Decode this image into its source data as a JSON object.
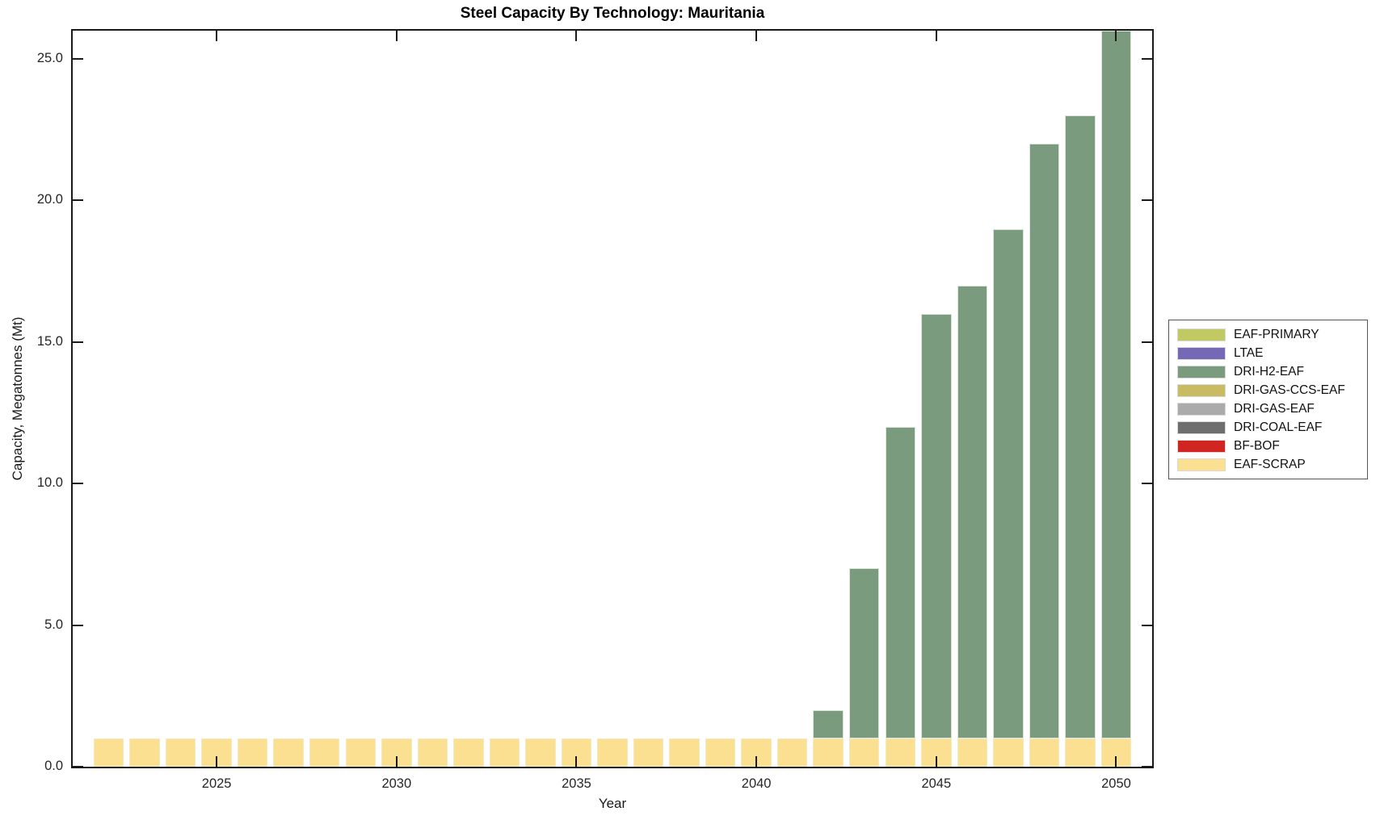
{
  "title": "Steel Capacity By Technology: Mauritania",
  "chart_data": {
    "type": "bar",
    "stacked": true,
    "title": "Steel Capacity By Technology: Mauritania",
    "xlabel": "Year",
    "ylabel": "Capacity, Megatonnes (Mt)",
    "x": [
      2022,
      2023,
      2024,
      2025,
      2026,
      2027,
      2028,
      2029,
      2030,
      2031,
      2032,
      2033,
      2034,
      2035,
      2036,
      2037,
      2038,
      2039,
      2040,
      2041,
      2042,
      2043,
      2044,
      2045,
      2046,
      2047,
      2048,
      2049,
      2050
    ],
    "series": [
      {
        "name": "EAF-PRIMARY",
        "color": "#c1ca62",
        "values": [
          0,
          0,
          0,
          0,
          0,
          0,
          0,
          0,
          0,
          0,
          0,
          0,
          0,
          0,
          0,
          0,
          0,
          0,
          0,
          0,
          0,
          0,
          0,
          0,
          0,
          0,
          0,
          0,
          0
        ]
      },
      {
        "name": "LTAE",
        "color": "#7568b7",
        "values": [
          0,
          0,
          0,
          0,
          0,
          0,
          0,
          0,
          0,
          0,
          0,
          0,
          0,
          0,
          0,
          0,
          0,
          0,
          0,
          0,
          0,
          0,
          0,
          0,
          0,
          0,
          0,
          0,
          0
        ]
      },
      {
        "name": "DRI-H2-EAF",
        "color": "#7a9b7e",
        "values": [
          0,
          0,
          0,
          0,
          0,
          0,
          0,
          0,
          0,
          0,
          0,
          0,
          0,
          0,
          0,
          0,
          0,
          0,
          0,
          0,
          1,
          6,
          11,
          15,
          16,
          18,
          21,
          22,
          25
        ]
      },
      {
        "name": "DRI-GAS-CCS-EAF",
        "color": "#c9bb61",
        "values": [
          0,
          0,
          0,
          0,
          0,
          0,
          0,
          0,
          0,
          0,
          0,
          0,
          0,
          0,
          0,
          0,
          0,
          0,
          0,
          0,
          0,
          0,
          0,
          0,
          0,
          0,
          0,
          0,
          0
        ]
      },
      {
        "name": "DRI-GAS-EAF",
        "color": "#ababab",
        "values": [
          0,
          0,
          0,
          0,
          0,
          0,
          0,
          0,
          0,
          0,
          0,
          0,
          0,
          0,
          0,
          0,
          0,
          0,
          0,
          0,
          0,
          0,
          0,
          0,
          0,
          0,
          0,
          0,
          0
        ]
      },
      {
        "name": "DRI-COAL-EAF",
        "color": "#6e6e6e",
        "values": [
          0,
          0,
          0,
          0,
          0,
          0,
          0,
          0,
          0,
          0,
          0,
          0,
          0,
          0,
          0,
          0,
          0,
          0,
          0,
          0,
          0,
          0,
          0,
          0,
          0,
          0,
          0,
          0,
          0
        ]
      },
      {
        "name": "BF-BOF",
        "color": "#d02521",
        "values": [
          0,
          0,
          0,
          0,
          0,
          0,
          0,
          0,
          0,
          0,
          0,
          0,
          0,
          0,
          0,
          0,
          0,
          0,
          0,
          0,
          0,
          0,
          0,
          0,
          0,
          0,
          0,
          0,
          0
        ]
      },
      {
        "name": "EAF-SCRAP",
        "color": "#fce091",
        "values": [
          1,
          1,
          1,
          1,
          1,
          1,
          1,
          1,
          1,
          1,
          1,
          1,
          1,
          1,
          1,
          1,
          1,
          1,
          1,
          1,
          1,
          1,
          1,
          1,
          1,
          1,
          1,
          1,
          1
        ]
      }
    ],
    "stack_totals": [
      1,
      1,
      1,
      1,
      1,
      1,
      1,
      1,
      1,
      1,
      1,
      1,
      1,
      1,
      1,
      1,
      1,
      1,
      1,
      1,
      2,
      7,
      12,
      16,
      17,
      19,
      22,
      23,
      26
    ],
    "xlim": [
      2021,
      2051
    ],
    "ylim": [
      0,
      26
    ],
    "xticks": {
      "values": [
        2025,
        2030,
        2035,
        2040,
        2045,
        2050
      ],
      "labels": [
        "2025",
        "2030",
        "2035",
        "2040",
        "2045",
        "2050"
      ]
    },
    "yticks": {
      "values": [
        0,
        5,
        10,
        15,
        20,
        25
      ],
      "labels": [
        "0.0",
        "5.0",
        "10.0",
        "15.0",
        "20.0",
        "25.0"
      ]
    },
    "grid": false,
    "legend": {
      "position": "right",
      "entries": [
        "EAF-PRIMARY",
        "LTAE",
        "DRI-H2-EAF",
        "DRI-GAS-CCS-EAF",
        "DRI-GAS-EAF",
        "DRI-COAL-EAF",
        "BF-BOF",
        "EAF-SCRAP"
      ]
    },
    "bar_edge_color": "#dce3d8",
    "yellow_edge_color": "#f5e9c0"
  }
}
